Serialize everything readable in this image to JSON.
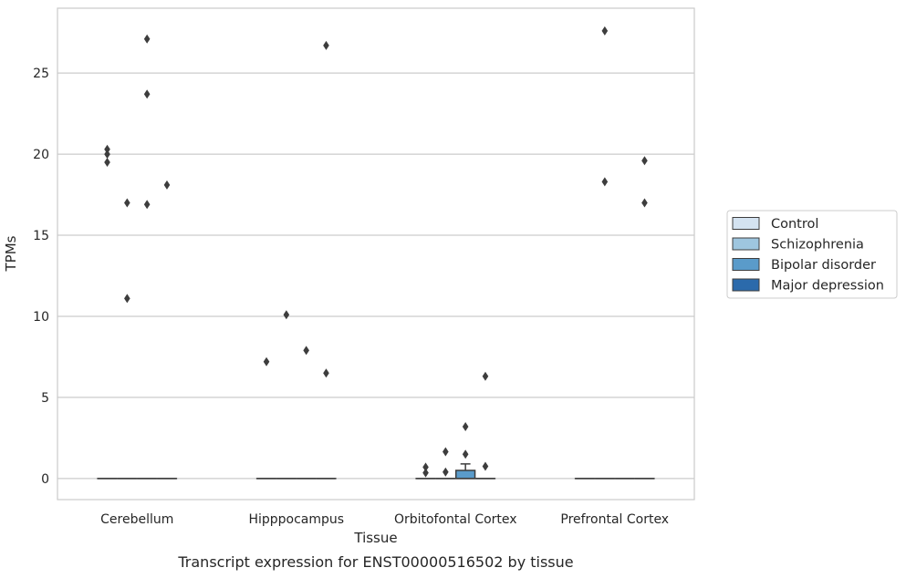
{
  "chart_data": {
    "type": "box",
    "xlabel": "Tissue",
    "ylabel": "TPMs",
    "caption": "Transcript expression for ENST00000516502 by tissue",
    "categories": [
      "Cerebellum",
      "Hipppocampus",
      "Orbitofontal Cortex",
      "Prefrontal Cortex"
    ],
    "yticks": [
      0,
      5,
      10,
      15,
      20,
      25
    ],
    "ylim": [
      -1.3,
      29
    ],
    "grid": "horizontal",
    "legend_position": "right",
    "series": [
      {
        "name": "Control",
        "color": "#d4e3f1"
      },
      {
        "name": "Schizophrenia",
        "color": "#9ec6df"
      },
      {
        "name": "Bipolar disorder",
        "color": "#5a9bca"
      },
      {
        "name": "Major depression",
        "color": "#2b6aab"
      }
    ],
    "boxes": [
      {
        "category": "Cerebellum",
        "series": "Control",
        "q1": 0,
        "median": 0,
        "q3": 0,
        "whisker_low": 0,
        "whisker_high": 0
      },
      {
        "category": "Cerebellum",
        "series": "Schizophrenia",
        "q1": 0,
        "median": 0,
        "q3": 0,
        "whisker_low": 0,
        "whisker_high": 0
      },
      {
        "category": "Cerebellum",
        "series": "Bipolar disorder",
        "q1": 0,
        "median": 0,
        "q3": 0,
        "whisker_low": 0,
        "whisker_high": 0
      },
      {
        "category": "Cerebellum",
        "series": "Major depression",
        "q1": 0,
        "median": 0,
        "q3": 0,
        "whisker_low": 0,
        "whisker_high": 0
      },
      {
        "category": "Hipppocampus",
        "series": "Control",
        "q1": 0,
        "median": 0,
        "q3": 0,
        "whisker_low": 0,
        "whisker_high": 0
      },
      {
        "category": "Hipppocampus",
        "series": "Schizophrenia",
        "q1": 0,
        "median": 0,
        "q3": 0,
        "whisker_low": 0,
        "whisker_high": 0
      },
      {
        "category": "Hipppocampus",
        "series": "Bipolar disorder",
        "q1": 0,
        "median": 0,
        "q3": 0,
        "whisker_low": 0,
        "whisker_high": 0
      },
      {
        "category": "Hipppocampus",
        "series": "Major depression",
        "q1": 0,
        "median": 0,
        "q3": 0,
        "whisker_low": 0,
        "whisker_high": 0
      },
      {
        "category": "Orbitofontal Cortex",
        "series": "Control",
        "q1": 0,
        "median": 0,
        "q3": 0,
        "whisker_low": 0,
        "whisker_high": 0
      },
      {
        "category": "Orbitofontal Cortex",
        "series": "Schizophrenia",
        "q1": 0,
        "median": 0,
        "q3": 0,
        "whisker_low": 0,
        "whisker_high": 0
      },
      {
        "category": "Orbitofontal Cortex",
        "series": "Bipolar disorder",
        "q1": 0,
        "median": 0,
        "q3": 0.5,
        "whisker_low": 0,
        "whisker_high": 0.9
      },
      {
        "category": "Orbitofontal Cortex",
        "series": "Major depression",
        "q1": 0,
        "median": 0,
        "q3": 0,
        "whisker_low": 0,
        "whisker_high": 0
      },
      {
        "category": "Prefrontal Cortex",
        "series": "Control",
        "q1": 0,
        "median": 0,
        "q3": 0,
        "whisker_low": 0,
        "whisker_high": 0
      },
      {
        "category": "Prefrontal Cortex",
        "series": "Schizophrenia",
        "q1": 0,
        "median": 0,
        "q3": 0,
        "whisker_low": 0,
        "whisker_high": 0
      },
      {
        "category": "Prefrontal Cortex",
        "series": "Bipolar disorder",
        "q1": 0,
        "median": 0,
        "q3": 0,
        "whisker_low": 0,
        "whisker_high": 0
      },
      {
        "category": "Prefrontal Cortex",
        "series": "Major depression",
        "q1": 0,
        "median": 0,
        "q3": 0,
        "whisker_low": 0,
        "whisker_high": 0
      }
    ],
    "outliers": [
      {
        "category": "Cerebellum",
        "series": "Control",
        "values": [
          20.3,
          20.0,
          19.5
        ]
      },
      {
        "category": "Cerebellum",
        "series": "Schizophrenia",
        "values": [
          17.0,
          11.1
        ]
      },
      {
        "category": "Cerebellum",
        "series": "Bipolar disorder",
        "values": [
          27.1,
          23.7,
          16.9
        ]
      },
      {
        "category": "Cerebellum",
        "series": "Major depression",
        "values": [
          18.1
        ]
      },
      {
        "category": "Hipppocampus",
        "series": "Control",
        "values": [
          7.2
        ]
      },
      {
        "category": "Hipppocampus",
        "series": "Schizophrenia",
        "values": [
          10.1
        ]
      },
      {
        "category": "Hipppocampus",
        "series": "Bipolar disorder",
        "values": [
          7.9
        ]
      },
      {
        "category": "Hipppocampus",
        "series": "Major depression",
        "values": [
          26.7,
          6.5
        ]
      },
      {
        "category": "Orbitofontal Cortex",
        "series": "Control",
        "values": [
          0.7,
          0.35
        ]
      },
      {
        "category": "Orbitofontal Cortex",
        "series": "Schizophrenia",
        "values": [
          1.65,
          0.4
        ]
      },
      {
        "category": "Orbitofontal Cortex",
        "series": "Bipolar disorder",
        "values": [
          3.2,
          1.5
        ]
      },
      {
        "category": "Orbitofontal Cortex",
        "series": "Major depression",
        "values": [
          6.3,
          0.75
        ]
      },
      {
        "category": "Prefrontal Cortex",
        "series": "Schizophrenia",
        "values": [
          27.6,
          18.3
        ]
      },
      {
        "category": "Prefrontal Cortex",
        "series": "Major depression",
        "values": [
          19.6,
          17.0
        ]
      }
    ]
  }
}
